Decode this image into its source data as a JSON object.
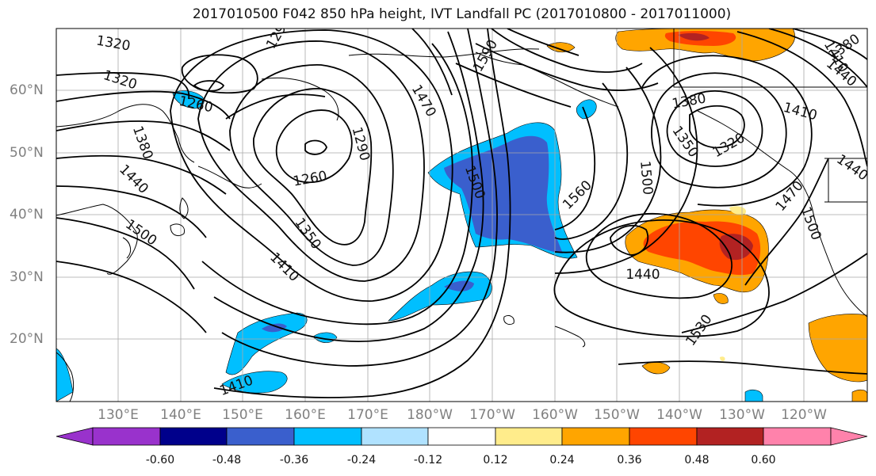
{
  "title": "2017010500 F042 850 hPa height, IVT Landfall PC (2017010800 - 2017011000)",
  "map": {
    "lat_ticks": [
      "60°N",
      "50°N",
      "40°N",
      "30°N",
      "20°N"
    ],
    "lon_ticks": [
      "130°E",
      "140°E",
      "150°E",
      "160°E",
      "170°E",
      "180°W",
      "170°W",
      "160°W",
      "150°W",
      "140°W",
      "130°W",
      "120°W"
    ],
    "contour_labels": [
      "1320",
      "1320",
      "1260",
      "1380",
      "1440",
      "1500",
      "1290",
      "1260",
      "1350",
      "1410",
      "1410",
      "1470",
      "1590",
      "1500",
      "1560",
      "1500",
      "1440",
      "1530",
      "1350",
      "1320",
      "1380",
      "1410",
      "1440",
      "1470",
      "1500",
      "1440",
      "1410",
      "1380",
      "1290"
    ]
  },
  "colorbar": {
    "labels": [
      "-0.60",
      "-0.48",
      "-0.36",
      "-0.24",
      "-0.12",
      "0.12",
      "0.24",
      "0.36",
      "0.48",
      "0.60"
    ],
    "colors": [
      "#9932cc",
      "#00008b",
      "#3a5fcd",
      "#00bfff",
      "#b0e2ff",
      "#ffffff",
      "#ffec8b",
      "#ffa500",
      "#ff4500",
      "#b22222",
      "#ff82ab"
    ]
  }
}
